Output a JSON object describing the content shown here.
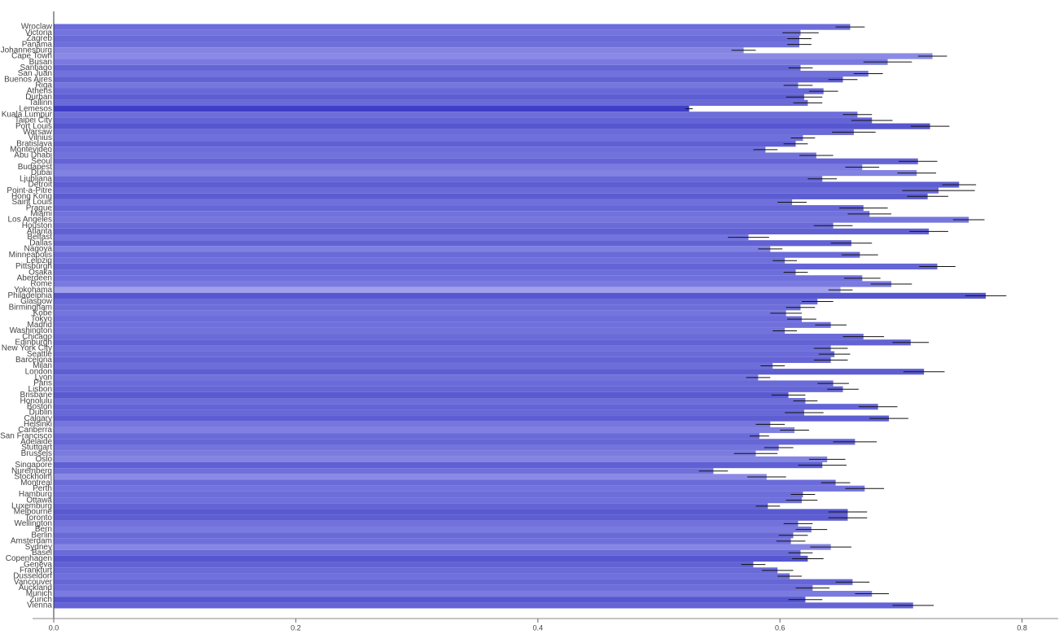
{
  "chart_data": {
    "type": "barh",
    "categories": [
      "Wroclaw",
      "Victoria",
      "Zagreb",
      "Panama",
      "Johannesburg",
      "Cape Town",
      "Busan",
      "Santiago",
      "San Juan",
      "Buenos Aires",
      "Riga",
      "Athens",
      "Durban",
      "Tallinn",
      "Lemesos",
      "Kuala Lumpur",
      "Taipei City",
      "Port Louis",
      "Warsaw",
      "Vilnius",
      "Bratislava",
      "Montevideo",
      "Abu Dhabi",
      "Seoul",
      "Budapest",
      "Dubai",
      "Ljubljana",
      "Detroit",
      "Point-a-Pitre",
      "Hong Kong",
      "Saint Louis",
      "Prague",
      "Miami",
      "Los Angeles",
      "Houston",
      "Atlanta",
      "Belfast",
      "Dallas",
      "Nagoya",
      "Minneapolis",
      "Leipzig",
      "Pittsburgh",
      "Osaka",
      "Aberdeen",
      "Rome",
      "Yokohama",
      "Philadelphia",
      "Glasgow",
      "Birmingham",
      "Kobe",
      "Tokyo",
      "Madrid",
      "Washington",
      "Chicago",
      "Edinburgh",
      "New York City",
      "Seattle",
      "Barcelona",
      "Milan",
      "London",
      "Lyon",
      "Paris",
      "Lisbon",
      "Brisbane",
      "Honolulu",
      "Boston",
      "Dublin",
      "Calgary",
      "Helsinki",
      "Canberra",
      "San Francisco",
      "Adelaide",
      "Stuttgart",
      "Brussels",
      "Oslo",
      "Singapore",
      "Nuremberg",
      "Stockholm",
      "Montreal",
      "Perth",
      "Hamburg",
      "Ottawa",
      "Luxemburg",
      "Melbourne",
      "Toronto",
      "Wellington",
      "Bern",
      "Berlin",
      "Amsterdam",
      "Sydney",
      "Basel",
      "Copenhagen",
      "Geneva",
      "Frankfurt",
      "Dusseldorf",
      "Vancouver",
      "Auckland",
      "Munich",
      "Zurich",
      "Vienna"
    ],
    "values": [
      0.658,
      0.617,
      0.616,
      0.616,
      0.57,
      0.726,
      0.689,
      0.617,
      0.673,
      0.652,
      0.615,
      0.636,
      0.62,
      0.623,
      0.525,
      0.664,
      0.676,
      0.724,
      0.661,
      0.619,
      0.613,
      0.588,
      0.63,
      0.714,
      0.668,
      0.713,
      0.635,
      0.748,
      0.731,
      0.722,
      0.61,
      0.669,
      0.674,
      0.756,
      0.644,
      0.723,
      0.574,
      0.659,
      0.592,
      0.666,
      0.604,
      0.73,
      0.613,
      0.668,
      0.692,
      0.65,
      0.77,
      0.631,
      0.617,
      0.605,
      0.618,
      0.642,
      0.604,
      0.669,
      0.708,
      0.642,
      0.645,
      0.642,
      0.594,
      0.719,
      0.582,
      0.644,
      0.652,
      0.607,
      0.621,
      0.681,
      0.62,
      0.69,
      0.592,
      0.612,
      0.583,
      0.662,
      0.599,
      0.58,
      0.639,
      0.635,
      0.545,
      0.589,
      0.646,
      0.67,
      0.619,
      0.618,
      0.59,
      0.656,
      0.656,
      0.615,
      0.626,
      0.611,
      0.609,
      0.642,
      0.617,
      0.623,
      0.578,
      0.598,
      0.608,
      0.66,
      0.627,
      0.676,
      0.621,
      0.71
    ],
    "errors": [
      0.012,
      0.015,
      0.01,
      0.01,
      0.01,
      0.012,
      0.02,
      0.01,
      0.012,
      0.012,
      0.012,
      0.012,
      0.015,
      0.012,
      0.003,
      0.012,
      0.017,
      0.016,
      0.018,
      0.01,
      0.01,
      0.01,
      0.014,
      0.016,
      0.014,
      0.016,
      0.012,
      0.014,
      0.03,
      0.017,
      0.012,
      0.02,
      0.018,
      0.013,
      0.016,
      0.016,
      0.017,
      0.017,
      0.01,
      0.015,
      0.01,
      0.015,
      0.01,
      0.015,
      0.017,
      0.01,
      0.017,
      0.013,
      0.012,
      0.013,
      0.012,
      0.013,
      0.01,
      0.017,
      0.015,
      0.014,
      0.013,
      0.014,
      0.01,
      0.017,
      0.01,
      0.013,
      0.013,
      0.014,
      0.01,
      0.016,
      0.016,
      0.016,
      0.012,
      0.012,
      0.008,
      0.018,
      0.012,
      0.018,
      0.015,
      0.02,
      0.012,
      0.016,
      0.012,
      0.016,
      0.01,
      0.013,
      0.01,
      0.016,
      0.016,
      0.012,
      0.013,
      0.012,
      0.012,
      0.017,
      0.01,
      0.013,
      0.01,
      0.013,
      0.01,
      0.014,
      0.014,
      0.014,
      0.014,
      0.017
    ],
    "colors": [
      "#6c6cdc",
      "#7474de",
      "#6a6ad8",
      "#7070dc",
      "#8484e2",
      "#8a8ae6",
      "#7a7ae0",
      "#6464d6",
      "#7272dc",
      "#6262d4",
      "#7676de",
      "#6868d8",
      "#5e5ed2",
      "#6a6ad8",
      "#3e3ec8",
      "#6e6eda",
      "#6464d6",
      "#5656d0",
      "#6a6ad8",
      "#7070dc",
      "#6060d4",
      "#6e6eda",
      "#7272dc",
      "#6464d6",
      "#7a7ae0",
      "#8282e2",
      "#6868d8",
      "#5e5ed2",
      "#6a6ad8",
      "#5c5cd2",
      "#7070dc",
      "#6666d6",
      "#7272dc",
      "#7676de",
      "#6a6ad8",
      "#6060d4",
      "#7474de",
      "#6262d4",
      "#8080e2",
      "#6a6ad8",
      "#7070dc",
      "#6464d6",
      "#6e6eda",
      "#7070dc",
      "#7a7ae0",
      "#a0a0ec",
      "#5656d0",
      "#6a6ad8",
      "#6e6eda",
      "#7474de",
      "#6c6cdc",
      "#7070dc",
      "#7272dc",
      "#6a6ad8",
      "#6262d4",
      "#7070dc",
      "#6a6ad8",
      "#6464d6",
      "#6e6eda",
      "#5e5ed2",
      "#7272dc",
      "#6a6ad8",
      "#6666d6",
      "#5a5ad0",
      "#6e6eda",
      "#6464d6",
      "#6868d8",
      "#5e5ed2",
      "#7676de",
      "#8080e2",
      "#6a6ad8",
      "#6666d6",
      "#7474de",
      "#7a7ae0",
      "#8484e2",
      "#6060d4",
      "#7070dc",
      "#8a8ae6",
      "#6a6ad8",
      "#7474de",
      "#6e6eda",
      "#7070dc",
      "#6464d6",
      "#5a5ad0",
      "#5e5ed2",
      "#7272dc",
      "#7a7ae0",
      "#6a6ad8",
      "#7070dc",
      "#8686e4",
      "#6a6ad8",
      "#5656d0",
      "#6262d4",
      "#6a6ad8",
      "#7070dc",
      "#6666d6",
      "#6e6eda",
      "#7a7ae0",
      "#5656d0",
      "#6464d6"
    ],
    "xlim": [
      0,
      0.83
    ],
    "xticks": [
      {
        "value": 0,
        "label": "0.0"
      },
      0.2,
      0.4,
      0.6,
      0.8
    ]
  }
}
